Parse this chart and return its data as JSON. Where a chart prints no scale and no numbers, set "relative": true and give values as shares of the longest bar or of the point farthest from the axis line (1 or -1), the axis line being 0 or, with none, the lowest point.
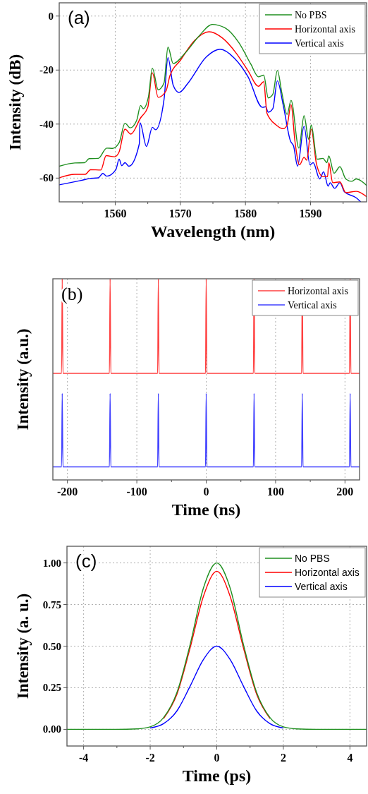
{
  "chart_data": [
    {
      "type": "line",
      "annotations": [
        "(a)"
      ],
      "xlabel": "Wavelength (nm)",
      "ylabel": "Intensity (dB)",
      "xlim": [
        1551.4,
        1598.6
      ],
      "ylim": [
        -68.8,
        4.9
      ],
      "xticks": [
        {
          "value": 1555,
          "label": null
        },
        1560,
        {
          "value": 1565,
          "label": null
        },
        1570,
        {
          "value": 1575,
          "label": null
        },
        1580,
        {
          "value": 1585,
          "label": null
        },
        1590,
        {
          "value": 1595,
          "label": null
        }
      ],
      "yticks": [
        -60,
        -40,
        -20,
        0
      ],
      "grid": true,
      "legend": "top right",
      "series": [
        {
          "name": "No PBS",
          "color": "#1f8f1f",
          "x": [
            1551.4,
            1553.8,
            1555.3,
            1556,
            1557.4,
            1558.7,
            1559.6,
            1560.6,
            1561.5,
            1562.3,
            1563.3,
            1563.9,
            1564.3,
            1565.1,
            1565.7,
            1566.6,
            1567.5,
            1568.1,
            1568.9,
            1570.7,
            1572.9,
            1574.9,
            1576.8,
            1579,
            1580.8,
            1582,
            1582.8,
            1583.5,
            1584.2,
            1584.9,
            1585.6,
            1586.4,
            1587,
            1588.2,
            1589,
            1589.7,
            1590.1,
            1591,
            1591.9,
            1592.5,
            1592.8,
            1593.6,
            1594.5,
            1595.4,
            1596.3,
            1597,
            1598.6
          ],
          "values": [
            -55.6,
            -54.4,
            -54.3,
            -52.8,
            -52.7,
            -48.9,
            -49,
            -46.9,
            -39.7,
            -41.4,
            -38.6,
            -33.1,
            -34.3,
            -29.9,
            -19.3,
            -27.3,
            -24.7,
            -11.5,
            -17.6,
            -13.8,
            -7.3,
            -3.1,
            -4.3,
            -9.9,
            -17.7,
            -22.5,
            -21.9,
            -30.3,
            -29,
            -20.2,
            -28.6,
            -36.4,
            -31.2,
            -48.9,
            -36.9,
            -45.6,
            -40.3,
            -53,
            -52.7,
            -54.3,
            -51.8,
            -58.2,
            -55.8,
            -60.3,
            -61.2,
            -60.3,
            -62.7
          ]
        },
        {
          "name": "Horizontal axis",
          "color": "#ff0000",
          "x": [
            1551.4,
            1553.8,
            1555.4,
            1556.2,
            1557.8,
            1558.6,
            1559.9,
            1560.6,
            1561.5,
            1562.4,
            1563.9,
            1565,
            1565.7,
            1566.6,
            1567.8,
            1568.4,
            1570,
            1572.2,
            1574.4,
            1576.5,
            1578.6,
            1580.4,
            1582,
            1582.8,
            1583.3,
            1584.7,
            1585.8,
            1586.4,
            1587,
            1587.6,
            1588.3,
            1589,
            1589.4,
            1590.1,
            1590.9,
            1591.9,
            1592.6,
            1592.8,
            1593.4,
            1594.5,
            1595.4,
            1597,
            1598.6
          ],
          "values": [
            -59.9,
            -58.6,
            -58.6,
            -56.9,
            -57,
            -51.7,
            -52.1,
            -50.3,
            -41.9,
            -43.7,
            -37.7,
            -33.8,
            -21,
            -30.1,
            -27.7,
            -22.1,
            -16.4,
            -9,
            -5.8,
            -8.2,
            -13.8,
            -20.3,
            -26,
            -24.3,
            -36,
            -40.3,
            -41.7,
            -40.3,
            -32.8,
            -46.4,
            -55.1,
            -52.3,
            -53.4,
            -41.9,
            -54.7,
            -59.5,
            -59.5,
            -54.3,
            -61.7,
            -61.4,
            -65.4,
            -64.9,
            -66.9
          ]
        },
        {
          "name": "Vertical axis",
          "color": "#0000ff",
          "x": [
            1551.4,
            1554.9,
            1556,
            1557.4,
            1558.1,
            1558.7,
            1560.1,
            1560.6,
            1561,
            1561.5,
            1562.1,
            1563.7,
            1563.8,
            1564.8,
            1565.7,
            1566.2,
            1567.5,
            1568.1,
            1568.9,
            1569.8,
            1571.1,
            1574,
            1576.1,
            1578.3,
            1580.4,
            1582.6,
            1583.1,
            1583.5,
            1584.2,
            1584.9,
            1585.8,
            1586.9,
            1587.4,
            1588,
            1589,
            1589.9,
            1590.4,
            1591.4,
            1592,
            1592.7,
            1593,
            1593.7,
            1594.5,
            1595.2,
            1597,
            1597.7
          ],
          "values": [
            -62.5,
            -60.8,
            -60.2,
            -59.9,
            -58.3,
            -59.3,
            -56.9,
            -53,
            -55.4,
            -54.3,
            -55.6,
            -47.3,
            -39.5,
            -48.3,
            -41.2,
            -42.1,
            -30.8,
            -15.4,
            -25.6,
            -28.3,
            -25.1,
            -15.1,
            -12.3,
            -15.6,
            -22.5,
            -33.8,
            -33.6,
            -35.6,
            -34.3,
            -24,
            -33,
            -46.2,
            -48.2,
            -55.6,
            -40.8,
            -55.1,
            -54.3,
            -60.3,
            -57.7,
            -63,
            -61.7,
            -63.8,
            -61.7,
            -65.1,
            -67.3,
            -68.8
          ]
        }
      ]
    },
    {
      "type": "line",
      "annotations": [
        "(b)"
      ],
      "xlabel": "Time (ns)",
      "ylabel": "Intensity (a.u.)",
      "relative": true,
      "tick_labels": "x",
      "xlim": [
        -221,
        221
      ],
      "xticks": [
        -200,
        {
          "value": -150,
          "label": null
        },
        -100,
        {
          "value": -50,
          "label": null
        },
        0,
        {
          "value": 50,
          "label": null
        },
        100,
        {
          "value": 150,
          "label": null
        },
        200
      ],
      "grid": "x",
      "legend": "top right",
      "series": [
        {
          "name": "Horizontal axis",
          "color": "#ff4040",
          "x": [
            -221,
            -208.5,
            -207.5,
            -206.5,
            -139.5,
            -138.5,
            -137.5,
            -70,
            -69,
            -68,
            -1,
            0,
            1,
            68,
            69,
            70,
            137.5,
            138.5,
            139.5,
            206.5,
            207.5,
            208.5,
            221
          ],
          "values": [
            0.53,
            0.53,
            1,
            0.53,
            0.53,
            1,
            0.53,
            0.53,
            1,
            0.53,
            0.53,
            1,
            0.53,
            0.53,
            1,
            0.53,
            0.53,
            1,
            0.53,
            0.53,
            1,
            0.53,
            0.53
          ]
        },
        {
          "name": "Vertical axis",
          "color": "#4040ff",
          "x": [
            -221,
            -208.5,
            -207.5,
            -206.5,
            -139.5,
            -138.5,
            -137.5,
            -70,
            -69,
            -68,
            -1,
            0,
            1,
            68,
            69,
            70,
            137.5,
            138.5,
            139.5,
            206.5,
            207.5,
            208.5,
            221
          ],
          "values": [
            0.065,
            0.065,
            0.43,
            0.065,
            0.065,
            0.43,
            0.065,
            0.065,
            0.43,
            0.065,
            0.065,
            0.43,
            0.065,
            0.065,
            0.43,
            0.065,
            0.065,
            0.43,
            0.065,
            0.065,
            0.43,
            0.065,
            0.065
          ]
        }
      ]
    },
    {
      "type": "line",
      "annotations": [
        "(c)"
      ],
      "xlabel": "Time (ps)",
      "ylabel": "Intensity (a. u.)",
      "xlim": [
        -4.5,
        4.5
      ],
      "ylim": [
        -0.1,
        1.1
      ],
      "xticks": [
        -4,
        {
          "value": -3,
          "label": null
        },
        -2,
        {
          "value": -1,
          "label": null
        },
        0,
        {
          "value": 1,
          "label": null
        },
        2,
        {
          "value": 3,
          "label": null
        },
        4
      ],
      "yticks": [
        {
          "value": 0,
          "label": "0.00"
        },
        {
          "value": 0.25,
          "label": "0.25"
        },
        {
          "value": 0.5,
          "label": "0.50"
        },
        {
          "value": 0.75,
          "label": "0.75"
        },
        {
          "value": 1,
          "label": "1.00"
        }
      ],
      "grid": true,
      "legend": "top right",
      "x": [
        -4.5,
        -3,
        -2.4,
        -2,
        -1.6,
        -1.2,
        -0.8,
        -0.4,
        0,
        0.4,
        0.8,
        1.2,
        1.6,
        2,
        2.4,
        3,
        4.5
      ],
      "series": [
        {
          "name": "No PBS",
          "color": "#1f8f1f",
          "values": [
            0,
            0,
            0.003,
            0.015,
            0.07,
            0.22,
            0.51,
            0.85,
            1,
            0.85,
            0.51,
            0.22,
            0.07,
            0.015,
            0.003,
            0,
            0
          ]
        },
        {
          "name": "Horizontal axis",
          "color": "#ff0000",
          "x": [
            -1.6,
            -1.2,
            -0.8,
            -0.4,
            0,
            0.4,
            0.8,
            1.2,
            1.6
          ],
          "values": [
            0.065,
            0.21,
            0.49,
            0.8,
            0.95,
            0.8,
            0.49,
            0.21,
            0.065
          ]
        },
        {
          "name": "Vertical axis",
          "color": "#0000ff",
          "x": [
            -2,
            -1.6,
            -1.2,
            -0.8,
            -0.4,
            0,
            0.4,
            0.8,
            1.2,
            1.6,
            2
          ],
          "values": [
            0.008,
            0.034,
            0.11,
            0.26,
            0.42,
            0.5,
            0.42,
            0.26,
            0.11,
            0.034,
            0.008
          ]
        }
      ]
    }
  ]
}
